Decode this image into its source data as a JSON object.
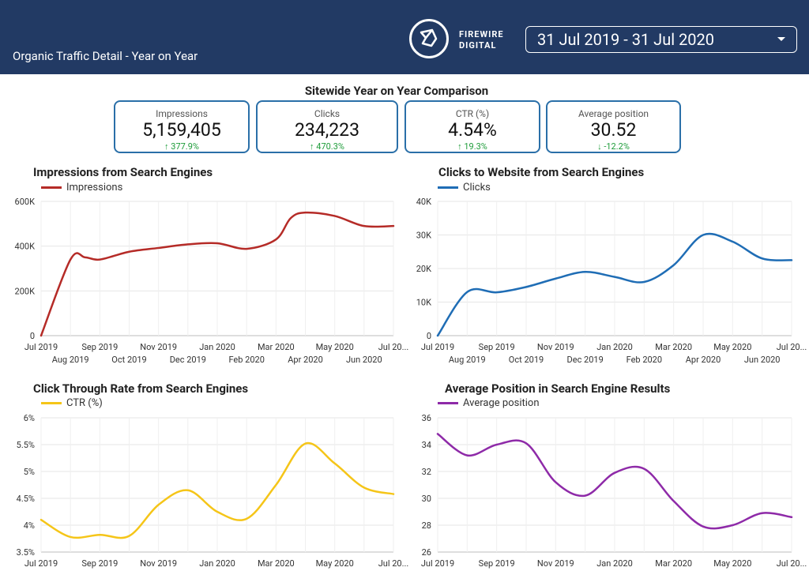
{
  "header": {
    "title": "Organic Traffic Detail - Year on Year",
    "logo_text_1": "FIREWIRE",
    "logo_text_2": "DIGITAL",
    "date_range": "31 Jul 2019 - 31 Jul 2020"
  },
  "section_title": "Sitewide Year on Year Comparison",
  "kpis": [
    {
      "label": "Impressions",
      "value": "5,159,405",
      "delta": "↑ 377.9%"
    },
    {
      "label": "Clicks",
      "value": "234,223",
      "delta": "↑ 470.3%"
    },
    {
      "label": "CTR (%)",
      "value": "4.54%",
      "delta": "↑ 19.3%"
    },
    {
      "label": "Average position",
      "value": "30.52",
      "delta": "↓ -12.2%"
    }
  ],
  "colors": {
    "impressions": "#b52b27",
    "clicks": "#1f6db5",
    "ctr": "#f5c518",
    "position": "#8e2aa8",
    "header": "#223a64"
  },
  "chart_data": [
    {
      "type": "line",
      "title": "Impressions from Search Engines",
      "legend": "Impressions",
      "x": [
        0,
        1,
        1.5,
        2,
        3,
        4,
        5,
        6,
        7,
        8,
        8.5,
        9,
        10,
        11,
        12
      ],
      "values": [
        0,
        340000,
        350000,
        340000,
        375000,
        392000,
        408000,
        413000,
        388000,
        430000,
        525000,
        550000,
        535000,
        490000,
        490000
      ],
      "ylim": [
        0,
        600000
      ],
      "yticks": [
        0,
        200000,
        400000,
        600000
      ],
      "ytick_labels": [
        "0",
        "200K",
        "400K",
        "600K"
      ],
      "xtick_labels_top": [
        "Jul 2019",
        "Sep 2019",
        "Nov 2019",
        "Jan 2020",
        "Mar 2020",
        "May 2020",
        "Jul 20..."
      ],
      "xtick_labels_bottom": [
        "Aug 2019",
        "Oct 2019",
        "Dec 2019",
        "Feb 2020",
        "Apr 2020",
        "Jun 2020"
      ]
    },
    {
      "type": "line",
      "title": "Clicks to Website from Search Engines",
      "legend": "Clicks",
      "x": [
        0,
        1,
        2,
        3,
        4,
        5,
        6,
        7,
        8,
        9,
        10,
        11,
        12
      ],
      "values": [
        0,
        13000,
        12900,
        14500,
        17000,
        19000,
        17500,
        16000,
        21000,
        30000,
        28000,
        23000,
        22500
      ],
      "ylim": [
        0,
        40000
      ],
      "yticks": [
        0,
        10000,
        20000,
        30000,
        40000
      ],
      "ytick_labels": [
        "0",
        "10K",
        "20K",
        "30K",
        "40K"
      ],
      "xtick_labels_top": [
        "Jul 2019",
        "Sep 2019",
        "Nov 2019",
        "Jan 2020",
        "Mar 2020",
        "May 2020",
        "Jul 20..."
      ],
      "xtick_labels_bottom": [
        "Aug 2019",
        "Oct 2019",
        "Dec 2019",
        "Feb 2020",
        "Apr 2020",
        "Jun 2020"
      ]
    },
    {
      "type": "line",
      "title": "Click Through Rate from Search Engines",
      "legend": "CTR (%)",
      "x": [
        0,
        1,
        2,
        3,
        4,
        5,
        6,
        7,
        8,
        9,
        10,
        11,
        12
      ],
      "values": [
        4.1,
        3.78,
        3.82,
        3.8,
        4.38,
        4.65,
        4.25,
        4.12,
        4.75,
        5.52,
        5.15,
        4.7,
        4.58
      ],
      "ylim": [
        3.5,
        6
      ],
      "yticks": [
        3.5,
        4,
        4.5,
        5,
        5.5,
        6
      ],
      "ytick_labels": [
        "3.5%",
        "4%",
        "4.5%",
        "5%",
        "5.5%",
        "6%"
      ],
      "xtick_labels_top": [
        "Jul 2019",
        "Sep 2019",
        "Nov 2019",
        "Jan 2020",
        "Mar 2020",
        "May 2020",
        "Jul 20..."
      ],
      "xtick_labels_bottom": []
    },
    {
      "type": "line",
      "title": "Average Position in Search Engine Results",
      "legend": "Average position",
      "x": [
        0,
        1,
        2,
        3,
        4,
        5,
        6,
        7,
        8,
        9,
        10,
        11,
        12
      ],
      "values": [
        34.8,
        33.2,
        34.0,
        34.1,
        31.2,
        30.2,
        31.9,
        32.2,
        29.8,
        27.9,
        28.0,
        28.9,
        28.6
      ],
      "ylim": [
        26,
        36
      ],
      "yticks": [
        26,
        28,
        30,
        32,
        34,
        36
      ],
      "ytick_labels": [
        "26",
        "28",
        "30",
        "32",
        "34",
        "36"
      ],
      "xtick_labels_top": [
        "Jul 2019",
        "Sep 2019",
        "Nov 2019",
        "Jan 2020",
        "Mar 2020",
        "May 2020",
        "Jul 20..."
      ],
      "xtick_labels_bottom": []
    }
  ]
}
